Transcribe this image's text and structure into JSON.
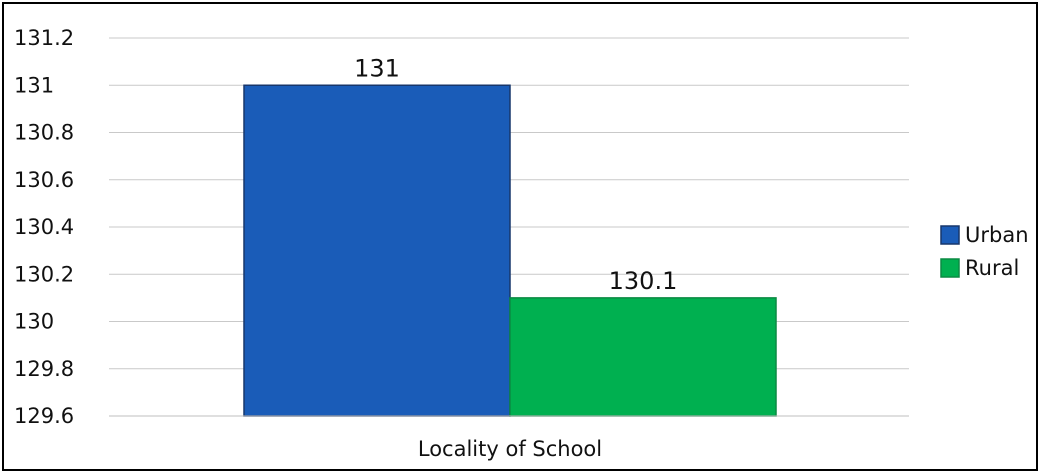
{
  "chart_data": {
    "type": "bar",
    "title": "",
    "xlabel": "Locality of School",
    "ylabel": "",
    "categories": [
      "Locality of School"
    ],
    "series": [
      {
        "name": "Urban",
        "values": [
          131
        ],
        "color": "#1a5cb8",
        "stroke": "#17366b"
      },
      {
        "name": "Rural",
        "values": [
          130.1
        ],
        "color": "#00b050",
        "stroke": "#0a8a42"
      }
    ],
    "data_labels": [
      "131",
      "130.1"
    ],
    "ylim": [
      129.6,
      131.2
    ],
    "yticks": [
      "129.6",
      "129.8",
      "130",
      "130.2",
      "130.4",
      "130.6",
      "130.8",
      "131",
      "131.2"
    ],
    "grid": true,
    "legend_position": "right"
  }
}
